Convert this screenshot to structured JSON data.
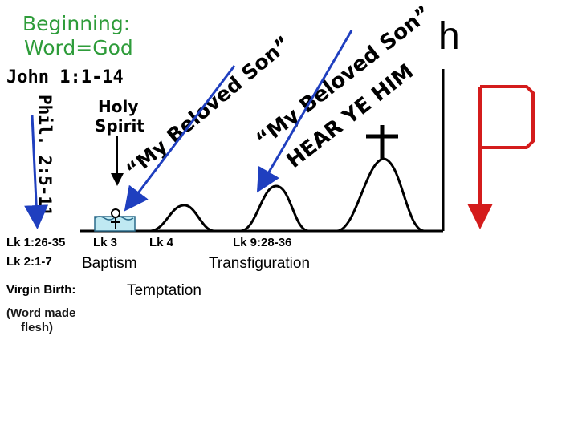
{
  "title": {
    "line1": "Beginning:",
    "line2": "Word=God"
  },
  "references": {
    "john": "John 1:1-14",
    "phil": "Phil. 2:5-11",
    "lk_birth": "Lk 1:26-35",
    "lk_birth2": "Lk 2:1-7",
    "lk_baptism": "Lk 3",
    "lk_temptation": "Lk 4",
    "lk_transfig": "Lk 9:28-36"
  },
  "labels": {
    "holy_spirit_1": "Holy",
    "holy_spirit_2": "Spirit",
    "baptism": "Baptism",
    "transfiguration": "Transfiguration",
    "temptation": "Temptation",
    "virgin_birth": "Virgin Birth:",
    "word_made_1": "(Word made",
    "word_made_2": "flesh)",
    "h_mark": "h"
  },
  "voices": {
    "baptism_voice": "“My Beloved Son”",
    "transfig_voice_1": "“My Beloved Son”",
    "transfig_voice_2": "HEAR YE HIM"
  },
  "colors": {
    "title_green": "#2e9c3a",
    "arrow_blue": "#1f3fbf",
    "arrow_red": "#d41c1c",
    "water": "#bfe9f2",
    "ink": "#000000"
  }
}
